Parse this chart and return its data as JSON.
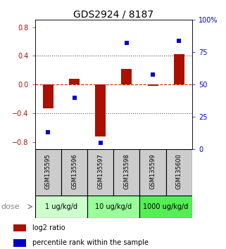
{
  "title": "GDS2924 / 8187",
  "samples": [
    "GSM135595",
    "GSM135596",
    "GSM135597",
    "GSM135598",
    "GSM135599",
    "GSM135600"
  ],
  "log2_ratio": [
    -0.33,
    0.08,
    -0.72,
    0.22,
    -0.02,
    0.42
  ],
  "percentile_rank": [
    13,
    40,
    5,
    82,
    58,
    84
  ],
  "dose_groups": [
    {
      "label": "1 ug/kg/d",
      "samples": [
        0,
        1
      ],
      "color": "#ccffcc"
    },
    {
      "label": "10 ug/kg/d",
      "samples": [
        2,
        3
      ],
      "color": "#99ff99"
    },
    {
      "label": "1000 ug/kg/d",
      "samples": [
        4,
        5
      ],
      "color": "#55ee55"
    }
  ],
  "bar_color": "#aa1100",
  "dot_color": "#0000cc",
  "left_ylim": [
    -0.9,
    0.9
  ],
  "right_ylim": [
    0,
    100
  ],
  "left_yticks": [
    -0.8,
    -0.4,
    0.0,
    0.4,
    0.8
  ],
  "right_yticks": [
    0,
    25,
    50,
    75,
    100
  ],
  "right_yticklabels": [
    "0",
    "25",
    "50",
    "75",
    "100%"
  ],
  "hlines_dotted": [
    -0.4,
    0.4
  ],
  "hline_zero_color": "#cc2200",
  "hline_dot_color": "#555555",
  "legend_red": "log2 ratio",
  "legend_blue": "percentile rank within the sample",
  "dose_label": "dose",
  "sample_box_color": "#cccccc",
  "background_color": "#ffffff",
  "bar_width": 0.4,
  "dot_size": 5
}
